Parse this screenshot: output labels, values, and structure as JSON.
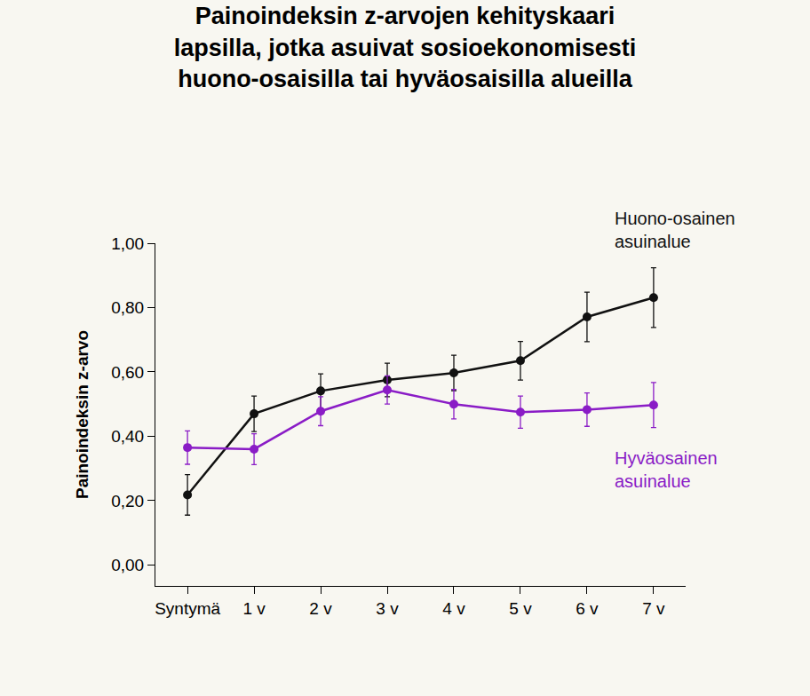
{
  "chart_data": {
    "type": "line",
    "title": "Painoindeksin z-arvojen kehityskaari\nlapsilla, jotka asuivat sosioekonomisesti\nhuono-osaisilla tai hyväosaisilla alueilla",
    "y_label": "Painoindeksin z-arvo",
    "categories": [
      "Syntymä",
      "1 v",
      "2 v",
      "3 v",
      "4 v",
      "5 v",
      "6 v",
      "7 v"
    ],
    "series": [
      {
        "name": "Huono-osainen asuinalue",
        "color": "#111111",
        "marker": "circle",
        "values": [
          0.218,
          0.47,
          0.541,
          0.575,
          0.597,
          0.635,
          0.771,
          0.831
        ],
        "errors": [
          0.063,
          0.055,
          0.053,
          0.052,
          0.055,
          0.06,
          0.077,
          0.093
        ]
      },
      {
        "name": "Hyväosainen asuinalue",
        "color": "#8a1cc6",
        "marker": "circle",
        "values": [
          0.365,
          0.36,
          0.478,
          0.544,
          0.5,
          0.475,
          0.483,
          0.497
        ],
        "errors": [
          0.052,
          0.048,
          0.045,
          0.044,
          0.046,
          0.05,
          0.052,
          0.07
        ]
      }
    ],
    "ylim": [
      -0.065,
      1.0
    ],
    "yticks": [
      {
        "value": 0,
        "label": "0,00"
      },
      {
        "value": 0.2,
        "label": "0,20"
      },
      {
        "value": 0.4,
        "label": "0,40"
      },
      {
        "value": 0.6,
        "label": "0,60"
      },
      {
        "value": 0.8,
        "label": "0,80"
      },
      {
        "value": 1.0,
        "label": "1,00"
      }
    ],
    "grid": false
  }
}
